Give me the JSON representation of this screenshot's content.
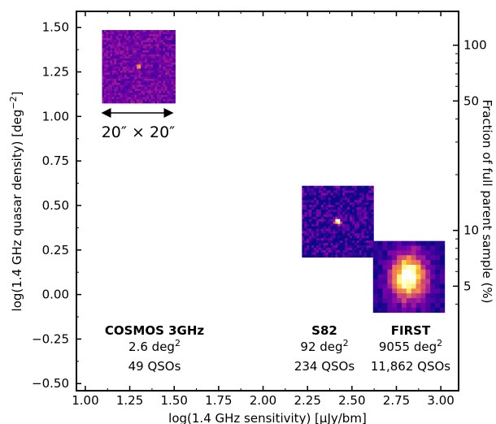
{
  "chart_data": {
    "type": "scatter",
    "xlabel": "log(1.4 GHz sensitivity) [μJy/bm]",
    "ylabel": "log(1.4 GHz quasar density) [deg",
    "ylabel_sup": "−2",
    "ylabel_end": "]",
    "y2label": "Fraction of full parent sample (%)",
    "xlim": [
      0.95,
      3.1
    ],
    "ylim": [
      -0.54,
      1.59
    ],
    "x_ticks": [
      "1.00",
      "1.25",
      "1.50",
      "1.75",
      "2.00",
      "2.25",
      "2.50",
      "2.75",
      "3.00"
    ],
    "y_ticks": [
      "1.50",
      "1.25",
      "1.00",
      "0.75",
      "0.50",
      "0.25",
      "0.00",
      "−0.25",
      "−0.50"
    ],
    "y2_ticks": [
      {
        "label": "100",
        "pct": 100
      },
      {
        "label": "50",
        "pct": 50
      },
      {
        "label": "10",
        "pct": 10
      },
      {
        "label": "5",
        "pct": 5
      }
    ],
    "surveys": [
      {
        "name": "COSMOS 3GHz",
        "area_text": "2.6 deg",
        "area_sup": "2",
        "qso_text": "49 QSOs",
        "x": 1.3,
        "y": 1.28,
        "map": "compact-small"
      },
      {
        "name": "S82",
        "area_text": "92 deg",
        "area_sup": "2",
        "qso_text": "234 QSOs",
        "x": 2.42,
        "y": 0.41,
        "map": "compact-medium"
      },
      {
        "name": "FIRST",
        "area_text": "9055 deg",
        "area_sup": "2",
        "qso_text": "11,862 QSOs",
        "x": 2.82,
        "y": 0.1,
        "map": "extended"
      }
    ],
    "scale_bar_label": "20″ × 20″",
    "colormap": [
      "#0d0887",
      "#4a02a0",
      "#7e03a8",
      "#b12a90",
      "#d8576b",
      "#f48849",
      "#fdc328",
      "#ffffa0",
      "#ffffff"
    ]
  }
}
